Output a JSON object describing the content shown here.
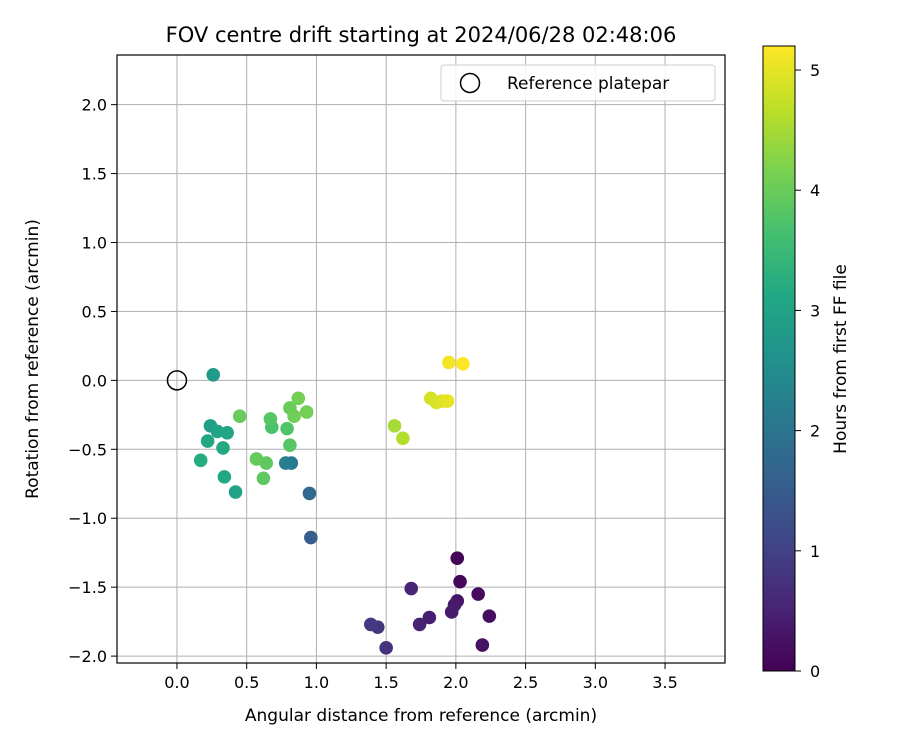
{
  "chart_data": {
    "type": "scatter",
    "title": "FOV centre drift starting at 2024/06/28 02:48:06",
    "xlabel": "Angular distance from reference (arcmin)",
    "ylabel": "Rotation from reference (arcmin)",
    "xlim": [
      -0.43,
      3.93
    ],
    "ylim": [
      -2.05,
      2.36
    ],
    "xticks": [
      0.0,
      0.5,
      1.0,
      1.5,
      2.0,
      2.5,
      3.0,
      3.5
    ],
    "xtick_labels": [
      "0.0",
      "0.5",
      "1.0",
      "1.5",
      "2.0",
      "2.5",
      "3.0",
      "3.5"
    ],
    "yticks": [
      2.0,
      1.5,
      1.0,
      0.5,
      0.0,
      -0.5,
      -1.0,
      -1.5,
      -2.0
    ],
    "ytick_labels": [
      "2.0",
      "1.5",
      "1.0",
      "0.5",
      "0.0",
      "−0.5",
      "−1.0",
      "−1.5",
      "−2.0"
    ],
    "grid": true,
    "legend": {
      "position": "top-right",
      "entries": [
        "Reference platepar"
      ]
    },
    "reference_point": {
      "x": 0.0,
      "y": 0.0,
      "label": "Reference platepar"
    },
    "colormap": "viridis",
    "colorbar": {
      "label": "Hours from first FF file",
      "range": [
        0,
        5.2
      ],
      "ticks": [
        0,
        1,
        2,
        3,
        4,
        5
      ],
      "tick_labels": [
        "0",
        "1",
        "2",
        "3",
        "4",
        "5"
      ]
    },
    "points": [
      {
        "x": 2.01,
        "y": -1.29,
        "hours": 0.05
      },
      {
        "x": 2.03,
        "y": -1.46,
        "hours": 0.1
      },
      {
        "x": 2.16,
        "y": -1.55,
        "hours": 0.15
      },
      {
        "x": 2.24,
        "y": -1.71,
        "hours": 0.2
      },
      {
        "x": 2.19,
        "y": -1.92,
        "hours": 0.25
      },
      {
        "x": 2.01,
        "y": -1.6,
        "hours": 0.3
      },
      {
        "x": 1.99,
        "y": -1.63,
        "hours": 0.35
      },
      {
        "x": 1.97,
        "y": -1.68,
        "hours": 0.4
      },
      {
        "x": 1.81,
        "y": -1.72,
        "hours": 0.45
      },
      {
        "x": 1.74,
        "y": -1.77,
        "hours": 0.5
      },
      {
        "x": 1.68,
        "y": -1.51,
        "hours": 0.55
      },
      {
        "x": 1.5,
        "y": -1.94,
        "hours": 0.75
      },
      {
        "x": 1.44,
        "y": -1.79,
        "hours": 0.8
      },
      {
        "x": 1.39,
        "y": -1.77,
        "hours": 0.85
      },
      {
        "x": 0.96,
        "y": -1.14,
        "hours": 1.55
      },
      {
        "x": 0.95,
        "y": -0.82,
        "hours": 1.75
      },
      {
        "x": 0.82,
        "y": -0.6,
        "hours": 2.1
      },
      {
        "x": 0.78,
        "y": -0.6,
        "hours": 2.2
      },
      {
        "x": 0.26,
        "y": 0.04,
        "hours": 2.8
      },
      {
        "x": 0.24,
        "y": -0.33,
        "hours": 2.9
      },
      {
        "x": 0.29,
        "y": -0.37,
        "hours": 3.0
      },
      {
        "x": 0.36,
        "y": -0.38,
        "hours": 3.05
      },
      {
        "x": 0.22,
        "y": -0.44,
        "hours": 3.1
      },
      {
        "x": 0.33,
        "y": -0.49,
        "hours": 3.15
      },
      {
        "x": 0.17,
        "y": -0.58,
        "hours": 3.2
      },
      {
        "x": 0.34,
        "y": -0.7,
        "hours": 3.1
      },
      {
        "x": 0.42,
        "y": -0.81,
        "hours": 3.0
      },
      {
        "x": 0.81,
        "y": -0.47,
        "hours": 3.85
      },
      {
        "x": 0.68,
        "y": -0.34,
        "hours": 3.7
      },
      {
        "x": 0.79,
        "y": -0.35,
        "hours": 3.75
      },
      {
        "x": 0.67,
        "y": -0.28,
        "hours": 3.8
      },
      {
        "x": 0.64,
        "y": -0.6,
        "hours": 3.9
      },
      {
        "x": 0.57,
        "y": -0.57,
        "hours": 3.95
      },
      {
        "x": 0.62,
        "y": -0.71,
        "hours": 3.9
      },
      {
        "x": 0.45,
        "y": -0.26,
        "hours": 4.0
      },
      {
        "x": 0.81,
        "y": -0.2,
        "hours": 4.0
      },
      {
        "x": 0.84,
        "y": -0.26,
        "hours": 4.05
      },
      {
        "x": 0.87,
        "y": -0.13,
        "hours": 4.1
      },
      {
        "x": 0.93,
        "y": -0.23,
        "hours": 4.1
      },
      {
        "x": 1.56,
        "y": -0.33,
        "hours": 4.5
      },
      {
        "x": 1.62,
        "y": -0.42,
        "hours": 4.6
      },
      {
        "x": 1.82,
        "y": -0.13,
        "hours": 4.85
      },
      {
        "x": 1.86,
        "y": -0.16,
        "hours": 4.9
      },
      {
        "x": 1.9,
        "y": -0.15,
        "hours": 4.95
      },
      {
        "x": 1.94,
        "y": -0.15,
        "hours": 5.0
      },
      {
        "x": 1.95,
        "y": 0.13,
        "hours": 5.1
      },
      {
        "x": 2.05,
        "y": 0.12,
        "hours": 5.2
      }
    ]
  }
}
